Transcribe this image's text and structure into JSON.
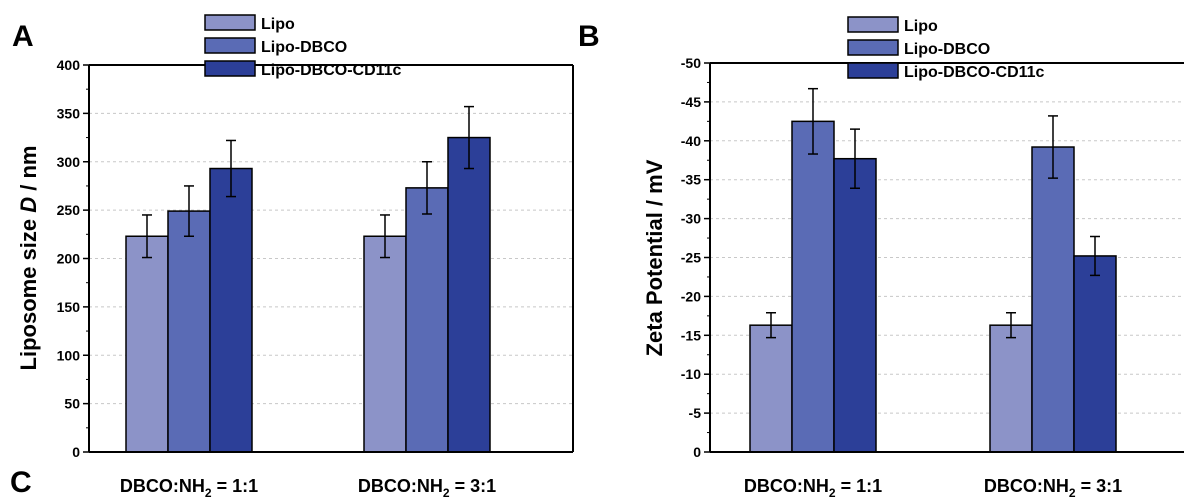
{
  "panels": {
    "a": "A",
    "b": "B",
    "c": "C"
  },
  "colors": {
    "Lipo": "#8c93c8",
    "Lipo-DBCO": "#5a6bb5",
    "Lipo-DBCO-CD11c": "#2c3f98",
    "grid": "#c8c8c8",
    "axis": "#000000"
  },
  "chart_data": [
    {
      "type": "bar",
      "panel": "A",
      "categories": [
        "DBCO:NH2 = 1:1",
        "DBCO:NH2 = 3:1"
      ],
      "category_parts": [
        {
          "pre": "DBCO:NH",
          "sub": "2",
          "post": " = 1:1"
        },
        {
          "pre": "DBCO:NH",
          "sub": "2",
          "post": " = 3:1"
        }
      ],
      "ylabel_pre": "Liposome size ",
      "ylabel_italic": "D",
      "ylabel_post": " / nm",
      "ylim": [
        0,
        400
      ],
      "yticks": [
        "0",
        "50",
        "100",
        "150",
        "200",
        "250",
        "300",
        "350",
        "400"
      ],
      "ytick_values": [
        0,
        50,
        100,
        150,
        200,
        250,
        300,
        350,
        400
      ],
      "grid": true,
      "legend_position": "top-center",
      "series": [
        {
          "name": "Lipo",
          "values": [
            223,
            223
          ],
          "errors": [
            22,
            22
          ]
        },
        {
          "name": "Lipo-DBCO",
          "values": [
            249,
            273
          ],
          "errors": [
            26,
            27
          ]
        },
        {
          "name": "Lipo-DBCO-CD11c",
          "values": [
            293,
            325
          ],
          "errors": [
            29,
            32
          ]
        }
      ]
    },
    {
      "type": "bar",
      "panel": "B",
      "categories": [
        "DBCO:NH2 = 1:1",
        "DBCO:NH2 = 3:1"
      ],
      "category_parts": [
        {
          "pre": "DBCO:NH",
          "sub": "2",
          "post": " = 1:1"
        },
        {
          "pre": "DBCO:NH",
          "sub": "2",
          "post": " = 3:1"
        }
      ],
      "ylabel": "Zeta Potential / mV",
      "ylim": [
        0,
        -50
      ],
      "yticks": [
        "0",
        "-5",
        "-10",
        "-15",
        "-20",
        "-25",
        "-30",
        "-35",
        "-40",
        "-45",
        "-50"
      ],
      "ytick_values": [
        0,
        -5,
        -10,
        -15,
        -20,
        -25,
        -30,
        -35,
        -40,
        -45,
        -50
      ],
      "grid": true,
      "legend_position": "top-center",
      "series": [
        {
          "name": "Lipo",
          "values": [
            -16.3,
            -16.3
          ],
          "errors": [
            1.6,
            1.6
          ]
        },
        {
          "name": "Lipo-DBCO",
          "values": [
            -42.5,
            -39.2
          ],
          "errors": [
            4.2,
            4.0
          ]
        },
        {
          "name": "Lipo-DBCO-CD11c",
          "values": [
            -37.7,
            -25.2
          ],
          "errors": [
            3.8,
            2.5
          ]
        }
      ]
    }
  ]
}
